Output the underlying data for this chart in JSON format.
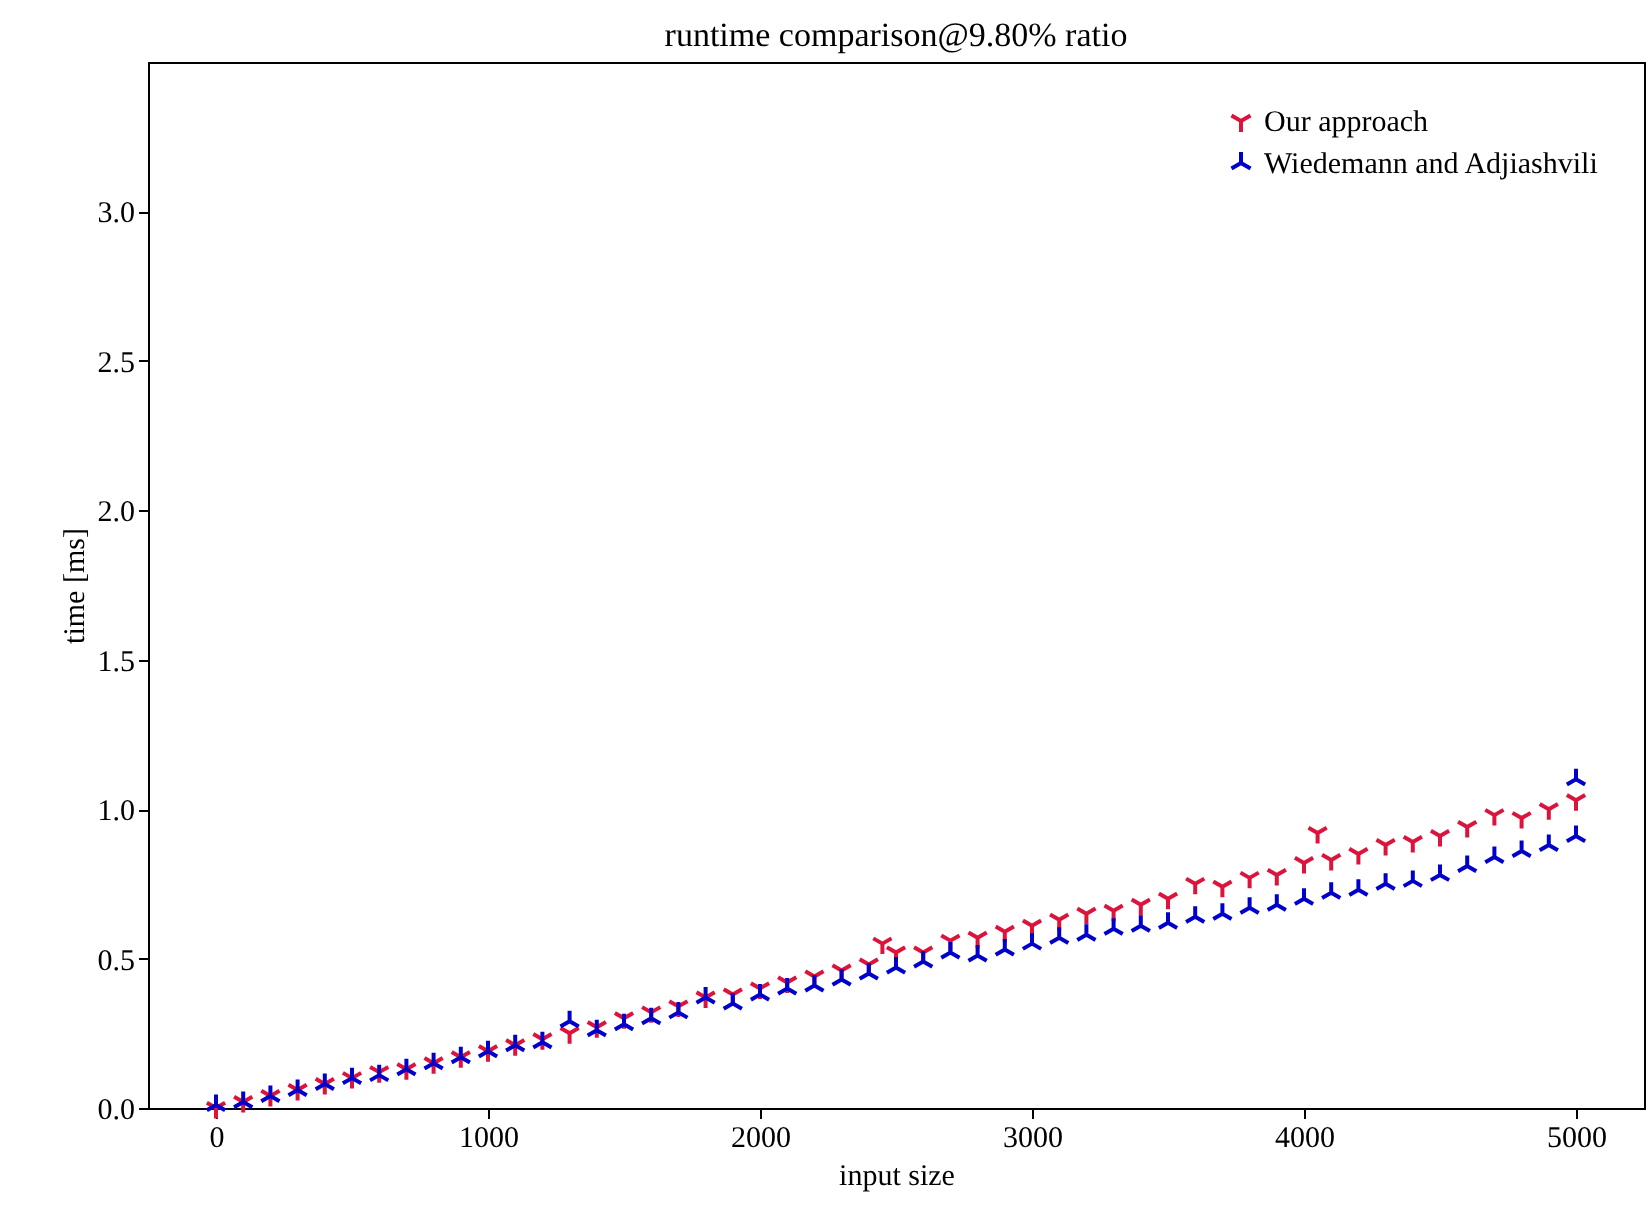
{
  "chart_data": {
    "type": "scatter",
    "title": "runtime comparison@9.80% ratio",
    "xlabel": "input size",
    "ylabel": "time [ms]",
    "xlim": [
      -250,
      5250
    ],
    "xticks": [
      0,
      1000,
      2000,
      3000,
      4000,
      5000
    ],
    "ylim": [
      0,
      3.5
    ],
    "yticks": [
      {
        "value": 0,
        "label": "0.0"
      },
      0.5,
      {
        "value": 1,
        "label": "1.0"
      },
      1.5,
      {
        "value": 2,
        "label": "2.0"
      },
      2.5,
      {
        "value": 3,
        "label": "3.0"
      }
    ],
    "grid": false,
    "legend": "top right",
    "series": [
      {
        "name": "Our approach",
        "color": "#dc143c",
        "x": [
          0,
          100,
          200,
          300,
          400,
          500,
          600,
          700,
          800,
          900,
          1000,
          1100,
          1200,
          1300,
          1400,
          1500,
          1600,
          1700,
          1800,
          1900,
          2000,
          2100,
          2200,
          2300,
          2400,
          2450,
          2500,
          2600,
          2700,
          2800,
          2900,
          3000,
          3100,
          3200,
          3300,
          3400,
          3500,
          3600,
          3700,
          3800,
          3900,
          4000,
          4050,
          4100,
          4200,
          4300,
          4400,
          4500,
          4600,
          4700,
          4800,
          4900,
          5000
        ],
        "values": [
          0.0,
          0.02,
          0.04,
          0.06,
          0.08,
          0.1,
          0.12,
          0.13,
          0.15,
          0.17,
          0.19,
          0.21,
          0.23,
          0.25,
          0.27,
          0.3,
          0.32,
          0.34,
          0.37,
          0.38,
          0.4,
          0.42,
          0.44,
          0.46,
          0.48,
          0.55,
          0.52,
          0.52,
          0.56,
          0.57,
          0.59,
          0.61,
          0.63,
          0.65,
          0.66,
          0.68,
          0.7,
          0.75,
          0.74,
          0.77,
          0.78,
          0.82,
          0.92,
          0.83,
          0.85,
          0.88,
          0.89,
          0.91,
          0.94,
          0.98,
          0.97,
          1.0,
          1.03
        ]
      },
      {
        "name": "Wiedemann and Adjiashvili",
        "color": "#0000cd",
        "x": [
          0,
          100,
          200,
          300,
          400,
          500,
          600,
          700,
          800,
          900,
          1000,
          1100,
          1200,
          1300,
          1400,
          1500,
          1600,
          1700,
          1800,
          1900,
          2000,
          2100,
          2200,
          2300,
          2400,
          2500,
          2600,
          2700,
          2800,
          2900,
          3000,
          3100,
          3200,
          3300,
          3400,
          3500,
          3600,
          3700,
          3800,
          3900,
          4000,
          4100,
          4200,
          4300,
          4400,
          4500,
          4600,
          4700,
          4800,
          4900,
          5000,
          5000
        ],
        "values": [
          0.01,
          0.02,
          0.04,
          0.06,
          0.08,
          0.1,
          0.11,
          0.13,
          0.15,
          0.17,
          0.19,
          0.21,
          0.22,
          0.29,
          0.26,
          0.28,
          0.3,
          0.32,
          0.37,
          0.35,
          0.38,
          0.4,
          0.41,
          0.43,
          0.45,
          0.47,
          0.49,
          0.52,
          0.51,
          0.53,
          0.55,
          0.57,
          0.58,
          0.6,
          0.61,
          0.62,
          0.64,
          0.65,
          0.67,
          0.68,
          0.7,
          0.72,
          0.73,
          0.75,
          0.76,
          0.78,
          0.81,
          0.84,
          0.86,
          0.88,
          0.91,
          1.1
        ]
      }
    ]
  }
}
